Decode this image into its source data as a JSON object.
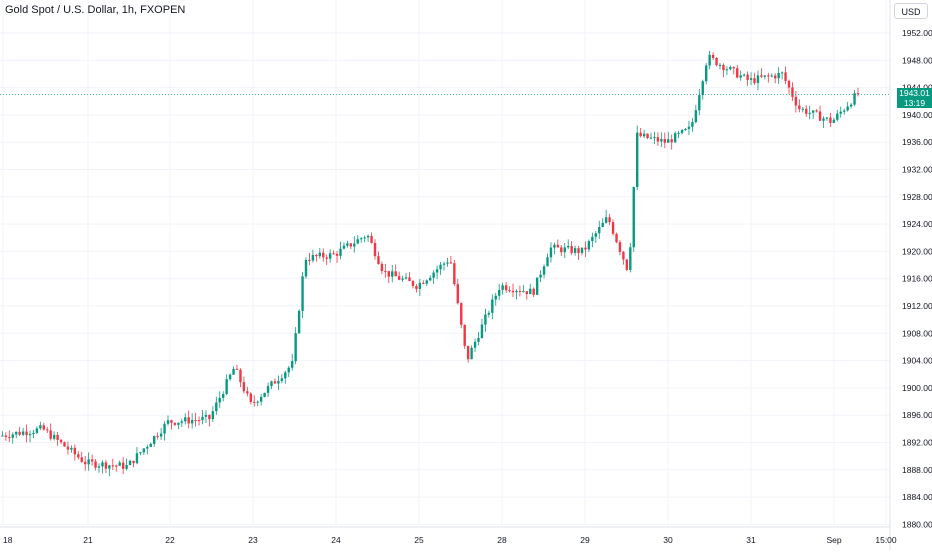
{
  "header": {
    "title": "Gold Spot / U.S. Dollar, 1h, FXOPEN",
    "currency_button": "USD"
  },
  "price_label": {
    "value": "1943.01",
    "countdown": "13:19",
    "color": "#089981"
  },
  "colors": {
    "up": "#089981",
    "down": "#f23645",
    "grid": "#f0f3fa",
    "text": "#131722",
    "axis_line": "#e0e3eb"
  },
  "chart_data": {
    "type": "candlestick",
    "title": "Gold Spot / U.S. Dollar, 1h, FXOPEN",
    "ylim": [
      1878,
      1955
    ],
    "y_ticks": [
      1880,
      1884,
      1888,
      1892,
      1896,
      1900,
      1904,
      1908,
      1912,
      1916,
      1920,
      1924,
      1928,
      1932,
      1936,
      1940,
      1944,
      1948,
      1952
    ],
    "x_ticks": [
      "18",
      "21",
      "22",
      "23",
      "24",
      "25",
      "28",
      "29",
      "30",
      "31",
      "Sep",
      "15:00"
    ],
    "current_price": 1943.01,
    "grid": true,
    "close_path": [
      [
        "18",
        1893.0
      ],
      [
        "18.5",
        1894.0
      ],
      [
        "21",
        1889.0
      ],
      [
        "21.5",
        1888.5
      ],
      [
        "22",
        1895.0
      ],
      [
        "22.5",
        1895.5
      ],
      [
        "22.8",
        1903.0
      ],
      [
        "23",
        1897.5
      ],
      [
        "23.5",
        1903.5
      ],
      [
        "23.65",
        1919.0
      ],
      [
        "24",
        1919.5
      ],
      [
        "24.4",
        1922.5
      ],
      [
        "24.6",
        1917.0
      ],
      [
        "25",
        1915.0
      ],
      [
        "25.4",
        1919.0
      ],
      [
        "25.6",
        1904.0
      ],
      [
        "28",
        1915.0
      ],
      [
        "28.4",
        1914.0
      ],
      [
        "28.6",
        1920.5
      ],
      [
        "29",
        1920.0
      ],
      [
        "29.3",
        1925.0
      ],
      [
        "29.55",
        1917.0
      ],
      [
        "29.65",
        1937.0
      ],
      [
        "30",
        1936.0
      ],
      [
        "30.3",
        1938.0
      ],
      [
        "30.5",
        1948.5
      ],
      [
        "31",
        1945.0
      ],
      [
        "31.4",
        1946.0
      ],
      [
        "31.6",
        1941.0
      ],
      [
        "Sep",
        1939.0
      ],
      [
        "Sep.3",
        1943.0
      ]
    ]
  }
}
